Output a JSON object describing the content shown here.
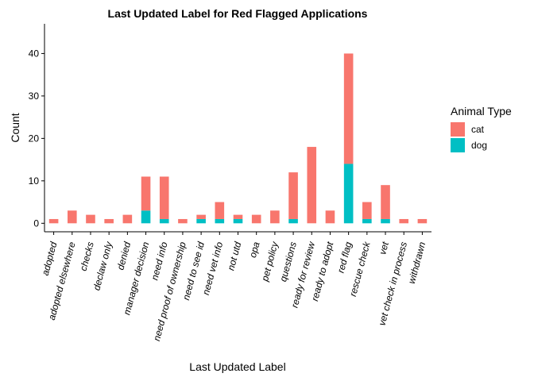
{
  "chart_data": {
    "type": "bar",
    "stacked": true,
    "title": "Last Updated Label for Red Flagged Applications",
    "xlabel": "Last Updated Label",
    "ylabel": "Count",
    "categories": [
      "adopted",
      "adopted elsewhere",
      "checks",
      "declaw only",
      "denied",
      "manager decision",
      "need info",
      "need proof of ownership",
      "need to see id",
      "need vet info",
      "not utd",
      "opa",
      "pet policy",
      "questions",
      "ready for review",
      "ready to adopt",
      "red flag",
      "rescue check",
      "vet",
      "vet check in process",
      "withdrawn"
    ],
    "series": [
      {
        "name": "cat",
        "color": "#F8766D",
        "values": [
          1,
          3,
          2,
          1,
          2,
          8,
          10,
          1,
          1,
          4,
          1,
          2,
          3,
          11,
          18,
          3,
          26,
          4,
          8,
          1,
          1
        ]
      },
      {
        "name": "dog",
        "color": "#00BFC4",
        "values": [
          0,
          0,
          0,
          0,
          0,
          3,
          1,
          0,
          1,
          1,
          1,
          0,
          0,
          1,
          0,
          0,
          14,
          1,
          1,
          0,
          0
        ]
      }
    ],
    "yticks": [
      0,
      10,
      20,
      30,
      40
    ],
    "ylim": [
      -2,
      47
    ],
    "grid": false,
    "legend": {
      "title": "Animal Type",
      "position": "right"
    }
  }
}
